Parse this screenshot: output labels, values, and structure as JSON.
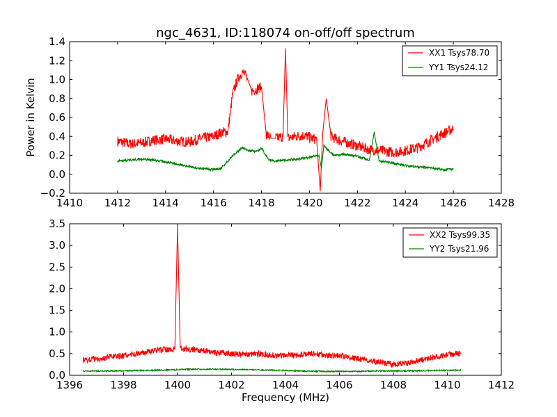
{
  "chart_data": [
    {
      "type": "line",
      "title": "ngc_4631, ID:118074 on-off/off spectrum",
      "xlabel": "",
      "ylabel": "Power in Kelvin",
      "xlim": [
        1410,
        1428
      ],
      "ylim": [
        -0.2,
        1.4
      ],
      "xticks": [
        "1410",
        "1412",
        "1414",
        "1416",
        "1418",
        "1420",
        "1422",
        "1424",
        "1426",
        "1428"
      ],
      "yticks": [
        "−0.2",
        "0.0",
        "0.2",
        "0.4",
        "0.6",
        "0.8",
        "1.0",
        "1.2",
        "1.4"
      ],
      "grid": false,
      "legend_position": "top-right",
      "series": [
        {
          "name": "XX1 Tsys78.70",
          "color": "#ff0000",
          "x": [
            1412.0,
            1412.5,
            1413.0,
            1413.5,
            1414.0,
            1414.5,
            1415.0,
            1415.5,
            1416.0,
            1416.3,
            1416.6,
            1416.8,
            1417.0,
            1417.2,
            1417.4,
            1417.6,
            1417.8,
            1418.0,
            1418.2,
            1418.4,
            1418.6,
            1418.9,
            1419.0,
            1419.1,
            1419.4,
            1419.8,
            1420.1,
            1420.3,
            1420.45,
            1420.55,
            1420.7,
            1420.9,
            1421.2,
            1421.6,
            1422.0,
            1422.5,
            1423.0,
            1423.5,
            1424.0,
            1424.5,
            1425.0,
            1425.5,
            1426.0
          ],
          "y": [
            0.35,
            0.32,
            0.33,
            0.36,
            0.37,
            0.35,
            0.34,
            0.38,
            0.4,
            0.44,
            0.45,
            0.85,
            1.0,
            1.08,
            1.02,
            0.88,
            0.9,
            0.92,
            0.42,
            0.38,
            0.38,
            0.4,
            1.33,
            0.38,
            0.4,
            0.41,
            0.38,
            0.37,
            -0.18,
            0.42,
            0.8,
            0.4,
            0.36,
            0.33,
            0.3,
            0.26,
            0.25,
            0.23,
            0.25,
            0.28,
            0.35,
            0.42,
            0.48
          ]
        },
        {
          "name": "YY1 Tsys24.12",
          "color": "#008000",
          "x": [
            1412.0,
            1412.5,
            1413.0,
            1413.5,
            1414.0,
            1414.5,
            1415.0,
            1415.5,
            1416.0,
            1416.3,
            1416.6,
            1416.9,
            1417.2,
            1417.5,
            1417.8,
            1418.0,
            1418.3,
            1418.6,
            1419.0,
            1419.5,
            1420.0,
            1420.4,
            1420.5,
            1420.6,
            1421.0,
            1421.5,
            1422.0,
            1422.5,
            1422.7,
            1422.9,
            1423.2,
            1423.6,
            1424.0,
            1424.5,
            1425.0,
            1425.5,
            1426.0
          ],
          "y": [
            0.14,
            0.15,
            0.16,
            0.15,
            0.13,
            0.11,
            0.08,
            0.06,
            0.05,
            0.06,
            0.14,
            0.22,
            0.28,
            0.25,
            0.24,
            0.28,
            0.15,
            0.14,
            0.15,
            0.16,
            0.18,
            0.2,
            0.06,
            0.3,
            0.2,
            0.21,
            0.19,
            0.15,
            0.45,
            0.14,
            0.13,
            0.11,
            0.09,
            0.08,
            0.07,
            0.05,
            0.05
          ]
        }
      ]
    },
    {
      "type": "line",
      "title": "",
      "xlabel": "Frequency (MHz)",
      "ylabel": "",
      "xlim": [
        1396,
        1412
      ],
      "ylim": [
        0,
        3.5
      ],
      "xticks": [
        "1396",
        "1398",
        "1400",
        "1402",
        "1404",
        "1406",
        "1408",
        "1410",
        "1412"
      ],
      "yticks": [
        "0.0",
        "0.5",
        "1.0",
        "1.5",
        "2.0",
        "2.5",
        "3.0",
        "3.5"
      ],
      "grid": false,
      "legend_position": "top-right",
      "series": [
        {
          "name": "XX2 Tsys99.35",
          "color": "#ff0000",
          "x": [
            1396.5,
            1397.0,
            1397.5,
            1398.0,
            1398.5,
            1399.0,
            1399.5,
            1399.9,
            1400.0,
            1400.1,
            1400.5,
            1401.0,
            1401.5,
            1402.0,
            1402.5,
            1403.0,
            1403.5,
            1404.0,
            1404.5,
            1405.0,
            1405.5,
            1406.0,
            1406.5,
            1407.0,
            1407.5,
            1408.0,
            1408.5,
            1409.0,
            1409.5,
            1410.0,
            1410.5
          ],
          "y": [
            0.35,
            0.38,
            0.42,
            0.45,
            0.5,
            0.55,
            0.6,
            0.6,
            3.45,
            0.62,
            0.6,
            0.57,
            0.52,
            0.5,
            0.48,
            0.5,
            0.47,
            0.45,
            0.48,
            0.5,
            0.46,
            0.45,
            0.4,
            0.35,
            0.3,
            0.25,
            0.28,
            0.35,
            0.42,
            0.48,
            0.5
          ]
        },
        {
          "name": "YY2 Tsys21.96",
          "color": "#008000",
          "x": [
            1396.5,
            1397.5,
            1398.5,
            1399.5,
            1400.5,
            1401.5,
            1402.5,
            1403.5,
            1404.5,
            1405.5,
            1406.5,
            1407.5,
            1408.5,
            1409.5,
            1410.5
          ],
          "y": [
            0.1,
            0.1,
            0.11,
            0.12,
            0.14,
            0.14,
            0.13,
            0.12,
            0.1,
            0.09,
            0.09,
            0.1,
            0.1,
            0.11,
            0.12
          ]
        }
      ]
    }
  ]
}
